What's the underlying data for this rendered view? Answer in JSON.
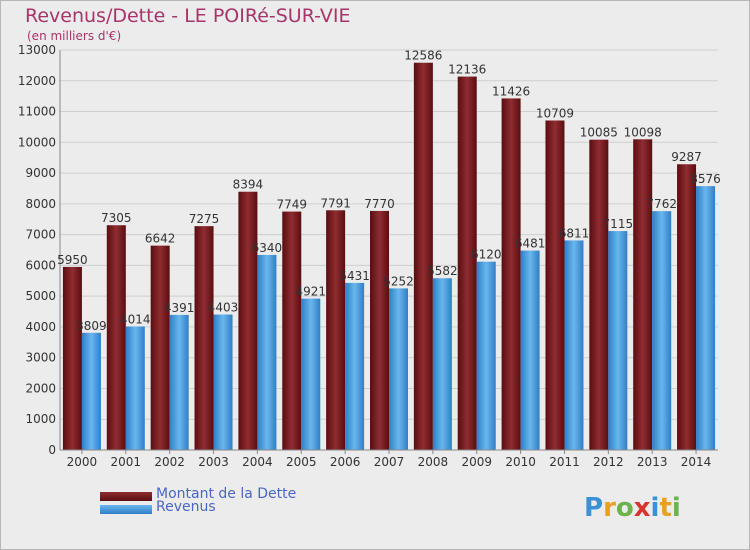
{
  "header": {
    "title": "Revenus/Dette - LE POIRé-SUR-VIE",
    "subtitle": "(en milliers d'€)"
  },
  "legend": {
    "items": [
      {
        "label": "Montant de la Dette",
        "color": "#7a1f22"
      },
      {
        "label": "Revenus",
        "color": "#4ea1e0"
      }
    ]
  },
  "logo": {
    "text": "Proxiti"
  },
  "colors": {
    "background": "#ececec",
    "grid": "#cfcfcf",
    "axis": "#888888",
    "dette_dark": "#5a0d10",
    "dette_light": "#8f2d31",
    "revenus_dark": "#2f7fc6",
    "revenus_light": "#6ab6ee",
    "title": "#a8346a",
    "legend_text": "#4a66c8"
  },
  "chart_data": {
    "type": "bar",
    "title": "Revenus/Dette - LE POIRé-SUR-VIE",
    "subtitle": "(en milliers d'€)",
    "categories": [
      "2000",
      "2001",
      "2002",
      "2003",
      "2004",
      "2005",
      "2006",
      "2007",
      "2008",
      "2009",
      "2010",
      "2011",
      "2012",
      "2013",
      "2014"
    ],
    "series": [
      {
        "name": "Montant de la Dette",
        "values": [
          5950,
          7305,
          6642,
          7275,
          8394,
          7749,
          7791,
          7770,
          12586,
          12136,
          11426,
          10709,
          10085,
          10098,
          9287
        ]
      },
      {
        "name": "Revenus",
        "values": [
          3809,
          4014,
          4391,
          4403,
          6340,
          4921,
          5431,
          5252,
          5582,
          6120,
          6481,
          6811,
          7115,
          7762,
          8576
        ]
      }
    ],
    "ylim": [
      0,
      13000
    ],
    "yticks": [
      0,
      1000,
      2000,
      3000,
      4000,
      5000,
      6000,
      7000,
      8000,
      9000,
      10000,
      11000,
      12000,
      13000
    ],
    "grid": true,
    "legend_position": "bottom-left"
  }
}
